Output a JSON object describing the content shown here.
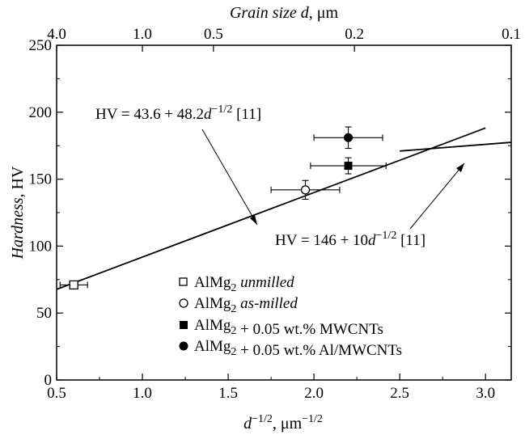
{
  "chart_data": {
    "type": "scatter",
    "x_axis": {
      "label_main": "d",
      "label_sup": "−1/2",
      "label_unit": ", μm",
      "label_unit_sup": "−1/2",
      "range": [
        0.5,
        3.15
      ],
      "ticks": [
        "0.5",
        "1.0",
        "1.5",
        "2.0",
        "2.5",
        "3.0"
      ],
      "tick_values": [
        0.5,
        1.0,
        1.5,
        2.0,
        2.5,
        3.0
      ]
    },
    "y_axis": {
      "label_main": "Hardness",
      "label_unit": ", HV",
      "range": [
        0,
        250
      ],
      "ticks": [
        "0",
        "50",
        "100",
        "150",
        "200",
        "250"
      ],
      "tick_values": [
        0,
        50,
        100,
        150,
        200,
        250
      ]
    },
    "top_axis": {
      "label_main": "Grain size d",
      "label_unit": ", μm",
      "ticks": [
        "4.0",
        "1.0",
        "0.5",
        "0.2",
        "0.1"
      ],
      "tick_values": [
        4.0,
        1.0,
        0.5,
        0.2,
        0.1
      ]
    },
    "series": [
      {
        "name": "AlMg2 unmilled",
        "marker": "open-square",
        "points": [
          {
            "x": 0.6,
            "y": 71,
            "xerr": 0.08,
            "yerr": 2
          }
        ]
      },
      {
        "name": "AlMg2 as-milled",
        "marker": "open-circle",
        "points": [
          {
            "x": 1.95,
            "y": 142,
            "xerr": 0.2,
            "yerr": 7
          }
        ]
      },
      {
        "name": "AlMg2 + 0.05 wt.% MWCNTs",
        "marker": "filled-square",
        "points": [
          {
            "x": 2.2,
            "y": 160,
            "xerr": 0.22,
            "yerr": 6
          }
        ]
      },
      {
        "name": "AlMg2 + 0.05 wt.% Al/MWCNTs",
        "marker": "filled-circle",
        "points": [
          {
            "x": 2.2,
            "y": 181,
            "xerr": 0.2,
            "yerr": 8
          }
        ]
      }
    ],
    "lines": [
      {
        "intercept": 43.6,
        "slope": 48.2,
        "x_range": [
          0.5,
          3.0
        ]
      },
      {
        "intercept": 146,
        "slope": 10,
        "x_range": [
          2.5,
          3.15
        ]
      }
    ],
    "legend": {
      "placement": "lower-center",
      "entries": [
        {
          "marker": "open-square",
          "base": "AlMg",
          "sub": "2",
          "rest_italic": " unmilled",
          "rest": ""
        },
        {
          "marker": "open-circle",
          "base": "AlMg",
          "sub": "2",
          "rest_italic": " as-milled",
          "rest": ""
        },
        {
          "marker": "filled-square",
          "base": "AlMg",
          "sub": "2",
          "rest_italic": "",
          "rest": " + 0.05 wt.% MWCNTs"
        },
        {
          "marker": "filled-circle",
          "base": "AlMg",
          "sub": "2",
          "rest_italic": "",
          "rest": " + 0.05 wt.% Al/MWCNTs"
        }
      ]
    },
    "annotations": [
      {
        "prefix": "HV = 43.6 + 48.2",
        "var": "d",
        "sup": "−1/2",
        "suffix": " [11]"
      },
      {
        "prefix": "HV = 146 + 10",
        "var": "d",
        "sup": "−1/2",
        "suffix": " [11]"
      }
    ]
  }
}
